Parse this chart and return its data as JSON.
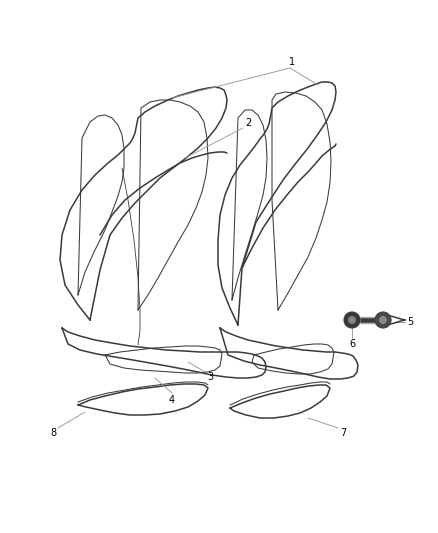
{
  "background_color": "#ffffff",
  "line_color": "#3a3a3a",
  "annotation_color": "#888888",
  "label_color": "#000000",
  "figsize": [
    4.39,
    5.33
  ],
  "dpi": 100
}
